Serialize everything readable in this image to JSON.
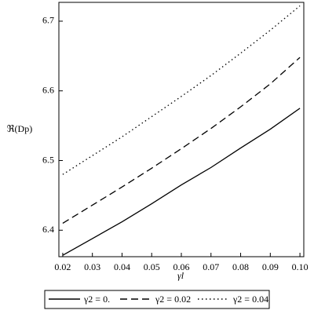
{
  "chart_data": {
    "type": "line",
    "x_label": "γl",
    "y_label": "ℜ(Dp)",
    "x": [
      0.02,
      0.03,
      0.04,
      0.05,
      0.06,
      0.07,
      0.08,
      0.09,
      0.1
    ],
    "series": [
      {
        "name": "γ2 = 0.",
        "color": "#000000",
        "dash": "solid",
        "values": [
          6.364,
          6.388,
          6.412,
          6.438,
          6.465,
          6.49,
          6.518,
          6.545,
          6.575
        ]
      },
      {
        "name": "γ2 = 0.02",
        "color": "#000000",
        "dash": "dash",
        "values": [
          6.41,
          6.436,
          6.462,
          6.489,
          6.517,
          6.546,
          6.577,
          6.61,
          6.648
        ]
      },
      {
        "name": "γ2 = 0.04",
        "color": "#000000",
        "dash": "dot",
        "values": [
          6.48,
          6.507,
          6.534,
          6.563,
          6.592,
          6.622,
          6.654,
          6.687,
          6.722
        ]
      }
    ],
    "xlim": [
      0.0187,
      0.1013
    ],
    "ylim": [
      6.362,
      6.727
    ],
    "xticks": [
      0.02,
      0.03,
      0.04,
      0.05,
      0.06,
      0.07,
      0.08,
      0.09,
      {
        "value": 0.1,
        "label": "0.10"
      }
    ],
    "yticks": [
      6.4,
      6.5,
      6.6,
      6.7
    ],
    "legend": "bottom"
  }
}
